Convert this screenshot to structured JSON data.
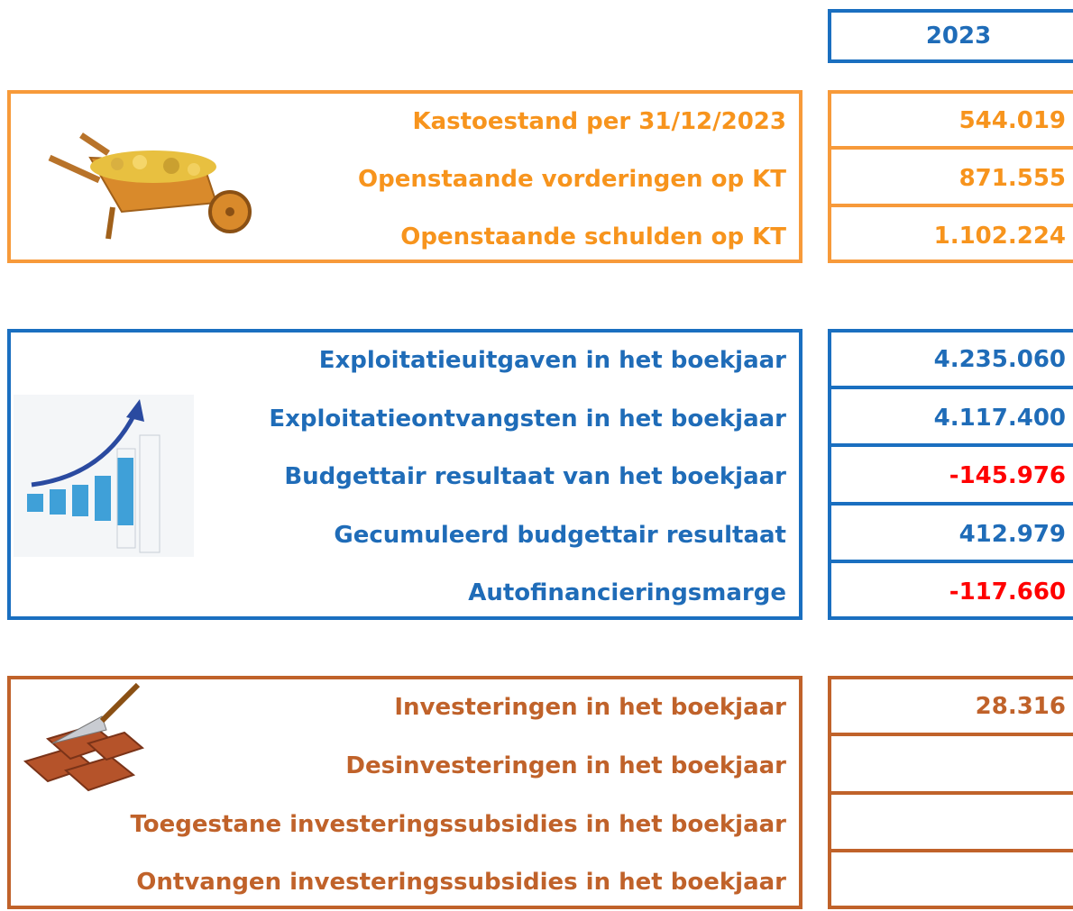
{
  "year": "2023",
  "sections": [
    {
      "rows": [
        {
          "label": "Kastoestand per 31/12/2023",
          "value": "544.019"
        },
        {
          "label": "Openstaande vorderingen op KT",
          "value": "871.555"
        },
        {
          "label": "Openstaande schulden op KT",
          "value": "1.102.224"
        }
      ]
    },
    {
      "rows": [
        {
          "label": "Exploitatieuitgaven in het boekjaar",
          "value": "4.235.060"
        },
        {
          "label": "Exploitatieontvangsten in het boekjaar",
          "value": "4.117.400"
        },
        {
          "label": "Budgettair resultaat van het boekjaar",
          "value": "-145.976"
        },
        {
          "label": "Gecumuleerd budgettair resultaat",
          "value": "412.979"
        },
        {
          "label": "Autofinancieringsmarge",
          "value": "-117.660"
        }
      ]
    },
    {
      "rows": [
        {
          "label": "Investeringen in het boekjaar",
          "value": "28.316"
        },
        {
          "label": "Desinvesteringen in het boekjaar"
        },
        {
          "label": "Toegestane investeringssubsidies in het boekjaar"
        },
        {
          "label": "Ontvangen investeringssubsidies in het boekjaar"
        }
      ]
    }
  ]
}
